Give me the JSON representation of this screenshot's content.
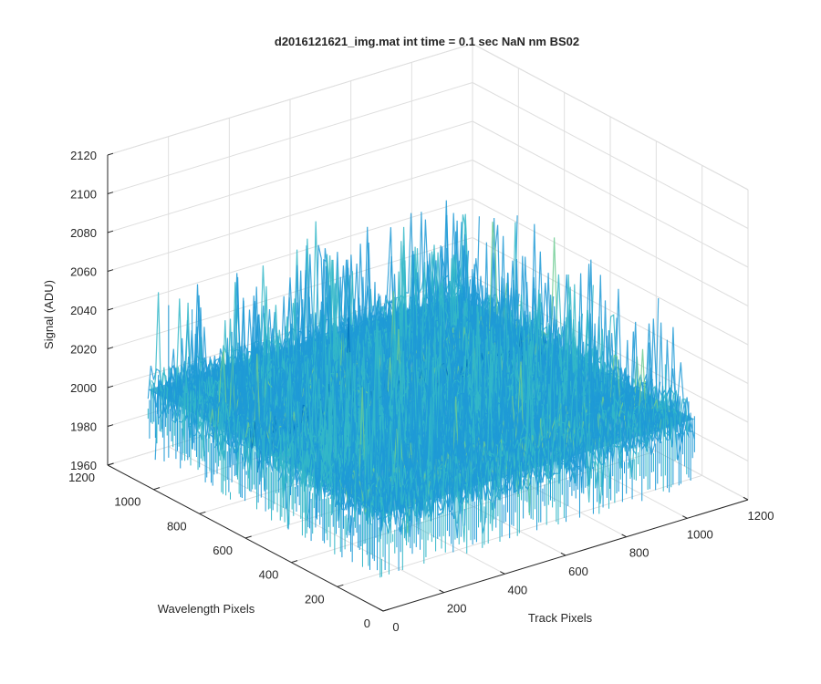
{
  "chart_data": {
    "type": "surface",
    "title": "d2016121621_img.mat int time = 0.1 sec  NaN nm BS02",
    "xlabel": "Track Pixels",
    "ylabel": "Wavelength Pixels",
    "zlabel": "Signal (ADU)",
    "xlim": [
      0,
      1200
    ],
    "ylim": [
      0,
      1200
    ],
    "zlim": [
      1960,
      2120
    ],
    "x_ticks": [
      "0",
      "200",
      "400",
      "600",
      "800",
      "1000",
      "1200"
    ],
    "y_ticks": [
      "0",
      "200",
      "400",
      "600",
      "800",
      "1000",
      "1200"
    ],
    "z_ticks": [
      "1960",
      "1980",
      "2000",
      "2020",
      "2040",
      "2060",
      "2080",
      "2100",
      "2120"
    ],
    "data_extent": {
      "x": [
        0,
        1024
      ],
      "y": [
        0,
        1024
      ]
    },
    "baseline": 2010,
    "noise_range": [
      1975,
      2090
    ],
    "colormap": [
      "#0072BD",
      "#1E9AD6",
      "#33B7C8",
      "#6CCB92",
      "#B5D65A",
      "#E0DA3A"
    ],
    "grid": true
  }
}
